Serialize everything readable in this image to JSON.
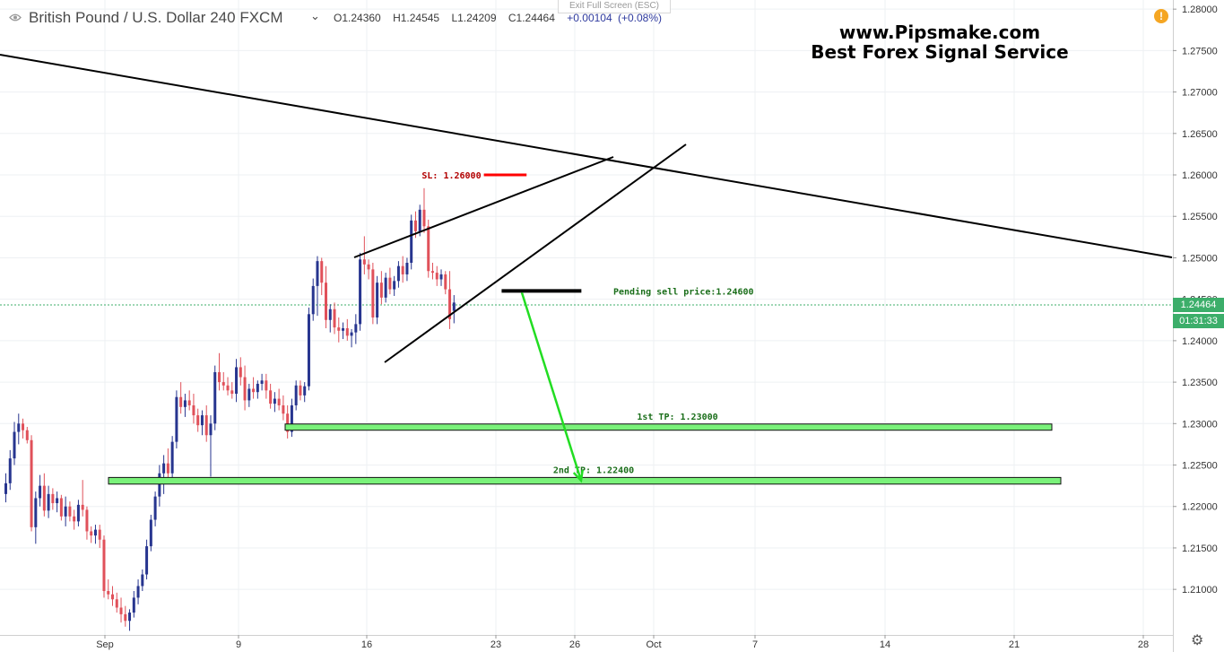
{
  "header": {
    "symbol": "British Pound / U.S. Dollar",
    "interval": "240",
    "exchange": "FXCM",
    "open": "O1.24360",
    "high": "H1.24545",
    "low": "L1.24209",
    "close": "C1.24464",
    "change": "+0.00104",
    "change_pct": "(+0.08%)"
  },
  "exit_fullscreen": "Exit Full Screen (ESC)",
  "brand": {
    "line1": "www.Pipsmake.com",
    "line2": "Best Forex Signal Service"
  },
  "alert_icon": "!",
  "settings_icon": "gear-icon",
  "price_tags": {
    "last": "1.24464",
    "countdown": "01:31:33",
    "color": "#3cae6a"
  },
  "colors": {
    "bull": "#27358f",
    "bear": "#e0515a",
    "tp_fill": "#7af27a",
    "sl": "#ff0000",
    "arrow": "#22dd22",
    "pending": "#000000",
    "label_green": "#1a6e1a",
    "label_red": "#b20000"
  },
  "chart_data": {
    "type": "candlestick",
    "x_ticks": [
      "Sep",
      "9",
      "16",
      "23",
      "26",
      "Oct",
      "7",
      "14",
      "21",
      "28"
    ],
    "y_ticks": [
      "1.28000",
      "1.27500",
      "1.27000",
      "1.26500",
      "1.26000",
      "1.25500",
      "1.25000",
      "1.24500",
      "1.24000",
      "1.23500",
      "1.23000",
      "1.22500",
      "1.22000",
      "1.21500",
      "1.21000"
    ],
    "ylim": [
      1.2045,
      1.2811
    ],
    "last_price": 1.24464,
    "candles": [
      {
        "o": 1.2215,
        "h": 1.224,
        "l": 1.2205,
        "c": 1.2228
      },
      {
        "o": 1.2228,
        "h": 1.2268,
        "l": 1.222,
        "c": 1.2258
      },
      {
        "o": 1.2258,
        "h": 1.2302,
        "l": 1.225,
        "c": 1.229
      },
      {
        "o": 1.229,
        "h": 1.2312,
        "l": 1.2275,
        "c": 1.23
      },
      {
        "o": 1.23,
        "h": 1.2306,
        "l": 1.2282,
        "c": 1.2292
      },
      {
        "o": 1.2292,
        "h": 1.2296,
        "l": 1.2276,
        "c": 1.228
      },
      {
        "o": 1.228,
        "h": 1.2286,
        "l": 1.217,
        "c": 1.2175
      },
      {
        "o": 1.2175,
        "h": 1.2218,
        "l": 1.2155,
        "c": 1.221
      },
      {
        "o": 1.221,
        "h": 1.2238,
        "l": 1.22,
        "c": 1.2225
      },
      {
        "o": 1.2225,
        "h": 1.224,
        "l": 1.2188,
        "c": 1.2195
      },
      {
        "o": 1.2195,
        "h": 1.2225,
        "l": 1.2186,
        "c": 1.2215
      },
      {
        "o": 1.2215,
        "h": 1.2222,
        "l": 1.2196,
        "c": 1.2204
      },
      {
        "o": 1.2204,
        "h": 1.2218,
        "l": 1.2193,
        "c": 1.221
      },
      {
        "o": 1.221,
        "h": 1.2214,
        "l": 1.2183,
        "c": 1.2188
      },
      {
        "o": 1.2188,
        "h": 1.2212,
        "l": 1.2176,
        "c": 1.22
      },
      {
        "o": 1.22,
        "h": 1.2206,
        "l": 1.2182,
        "c": 1.2188
      },
      {
        "o": 1.2188,
        "h": 1.2196,
        "l": 1.2172,
        "c": 1.2182
      },
      {
        "o": 1.2182,
        "h": 1.2208,
        "l": 1.2176,
        "c": 1.2202
      },
      {
        "o": 1.2202,
        "h": 1.2232,
        "l": 1.2188,
        "c": 1.2196
      },
      {
        "o": 1.2196,
        "h": 1.22,
        "l": 1.216,
        "c": 1.217
      },
      {
        "o": 1.217,
        "h": 1.2176,
        "l": 1.2156,
        "c": 1.2165
      },
      {
        "o": 1.2165,
        "h": 1.2178,
        "l": 1.2155,
        "c": 1.2172
      },
      {
        "o": 1.2172,
        "h": 1.2178,
        "l": 1.215,
        "c": 1.216
      },
      {
        "o": 1.216,
        "h": 1.2165,
        "l": 1.209,
        "c": 1.2098
      },
      {
        "o": 1.2098,
        "h": 1.2112,
        "l": 1.2088,
        "c": 1.2094
      },
      {
        "o": 1.2094,
        "h": 1.2104,
        "l": 1.208,
        "c": 1.2088
      },
      {
        "o": 1.2088,
        "h": 1.2096,
        "l": 1.2072,
        "c": 1.2078
      },
      {
        "o": 1.2078,
        "h": 1.209,
        "l": 1.206,
        "c": 1.207
      },
      {
        "o": 1.207,
        "h": 1.208,
        "l": 1.2055,
        "c": 1.2062
      },
      {
        "o": 1.2062,
        "h": 1.2076,
        "l": 1.205,
        "c": 1.2072
      },
      {
        "o": 1.2072,
        "h": 1.2098,
        "l": 1.2066,
        "c": 1.209
      },
      {
        "o": 1.209,
        "h": 1.2112,
        "l": 1.2082,
        "c": 1.2104
      },
      {
        "o": 1.2104,
        "h": 1.2124,
        "l": 1.2098,
        "c": 1.2118
      },
      {
        "o": 1.2118,
        "h": 1.216,
        "l": 1.2112,
        "c": 1.2152
      },
      {
        "o": 1.2152,
        "h": 1.219,
        "l": 1.2146,
        "c": 1.2184
      },
      {
        "o": 1.2184,
        "h": 1.2218,
        "l": 1.2176,
        "c": 1.2212
      },
      {
        "o": 1.2212,
        "h": 1.225,
        "l": 1.22,
        "c": 1.224
      },
      {
        "o": 1.224,
        "h": 1.2262,
        "l": 1.2215,
        "c": 1.2252
      },
      {
        "o": 1.2252,
        "h": 1.227,
        "l": 1.2232,
        "c": 1.224
      },
      {
        "o": 1.224,
        "h": 1.2285,
        "l": 1.2232,
        "c": 1.2278
      },
      {
        "o": 1.2278,
        "h": 1.234,
        "l": 1.227,
        "c": 1.2332
      },
      {
        "o": 1.2332,
        "h": 1.235,
        "l": 1.2312,
        "c": 1.232
      },
      {
        "o": 1.232,
        "h": 1.2336,
        "l": 1.2308,
        "c": 1.2328
      },
      {
        "o": 1.2328,
        "h": 1.234,
        "l": 1.2316,
        "c": 1.2322
      },
      {
        "o": 1.2322,
        "h": 1.2336,
        "l": 1.23,
        "c": 1.231
      },
      {
        "o": 1.231,
        "h": 1.2318,
        "l": 1.229,
        "c": 1.2298
      },
      {
        "o": 1.2298,
        "h": 1.2316,
        "l": 1.2286,
        "c": 1.231
      },
      {
        "o": 1.231,
        "h": 1.2322,
        "l": 1.2278,
        "c": 1.2286
      },
      {
        "o": 1.2286,
        "h": 1.231,
        "l": 1.2236,
        "c": 1.23
      },
      {
        "o": 1.23,
        "h": 1.237,
        "l": 1.2292,
        "c": 1.2362
      },
      {
        "o": 1.2362,
        "h": 1.2385,
        "l": 1.234,
        "c": 1.235
      },
      {
        "o": 1.235,
        "h": 1.2362,
        "l": 1.234,
        "c": 1.2346
      },
      {
        "o": 1.2346,
        "h": 1.2356,
        "l": 1.2334,
        "c": 1.234
      },
      {
        "o": 1.234,
        "h": 1.235,
        "l": 1.233,
        "c": 1.2336
      },
      {
        "o": 1.2336,
        "h": 1.2378,
        "l": 1.2326,
        "c": 1.2368
      },
      {
        "o": 1.2368,
        "h": 1.238,
        "l": 1.2346,
        "c": 1.2356
      },
      {
        "o": 1.2356,
        "h": 1.237,
        "l": 1.2316,
        "c": 1.2328
      },
      {
        "o": 1.2328,
        "h": 1.2348,
        "l": 1.232,
        "c": 1.2342
      },
      {
        "o": 1.2342,
        "h": 1.2356,
        "l": 1.233,
        "c": 1.2338
      },
      {
        "o": 1.2338,
        "h": 1.2352,
        "l": 1.233,
        "c": 1.2348
      },
      {
        "o": 1.2348,
        "h": 1.236,
        "l": 1.234,
        "c": 1.2352
      },
      {
        "o": 1.2352,
        "h": 1.236,
        "l": 1.233,
        "c": 1.234
      },
      {
        "o": 1.234,
        "h": 1.2348,
        "l": 1.2318,
        "c": 1.2324
      },
      {
        "o": 1.2324,
        "h": 1.2338,
        "l": 1.2314,
        "c": 1.233
      },
      {
        "o": 1.233,
        "h": 1.2342,
        "l": 1.2316,
        "c": 1.2322
      },
      {
        "o": 1.2322,
        "h": 1.2334,
        "l": 1.2304,
        "c": 1.2312
      },
      {
        "o": 1.2312,
        "h": 1.2322,
        "l": 1.2282,
        "c": 1.229
      },
      {
        "o": 1.229,
        "h": 1.233,
        "l": 1.2284,
        "c": 1.2322
      },
      {
        "o": 1.2322,
        "h": 1.2352,
        "l": 1.2316,
        "c": 1.2346
      },
      {
        "o": 1.2346,
        "h": 1.2352,
        "l": 1.2328,
        "c": 1.2334
      },
      {
        "o": 1.2334,
        "h": 1.235,
        "l": 1.2326,
        "c": 1.2345
      },
      {
        "o": 1.2345,
        "h": 1.244,
        "l": 1.234,
        "c": 1.2432
      },
      {
        "o": 1.2432,
        "h": 1.2475,
        "l": 1.2424,
        "c": 1.2466
      },
      {
        "o": 1.2466,
        "h": 1.2502,
        "l": 1.243,
        "c": 1.2496
      },
      {
        "o": 1.2496,
        "h": 1.25,
        "l": 1.2455,
        "c": 1.247
      },
      {
        "o": 1.247,
        "h": 1.249,
        "l": 1.2415,
        "c": 1.2425
      },
      {
        "o": 1.2425,
        "h": 1.2444,
        "l": 1.241,
        "c": 1.2438
      },
      {
        "o": 1.2438,
        "h": 1.2446,
        "l": 1.2408,
        "c": 1.2416
      },
      {
        "o": 1.2416,
        "h": 1.2428,
        "l": 1.2398,
        "c": 1.2412
      },
      {
        "o": 1.2412,
        "h": 1.2422,
        "l": 1.2402,
        "c": 1.2415
      },
      {
        "o": 1.2415,
        "h": 1.2426,
        "l": 1.24,
        "c": 1.2406
      },
      {
        "o": 1.2406,
        "h": 1.2414,
        "l": 1.2392,
        "c": 1.241
      },
      {
        "o": 1.241,
        "h": 1.2432,
        "l": 1.2396,
        "c": 1.242
      },
      {
        "o": 1.242,
        "h": 1.2506,
        "l": 1.2412,
        "c": 1.2498
      },
      {
        "o": 1.2498,
        "h": 1.2526,
        "l": 1.248,
        "c": 1.2492
      },
      {
        "o": 1.2492,
        "h": 1.2498,
        "l": 1.2474,
        "c": 1.2486
      },
      {
        "o": 1.2486,
        "h": 1.2494,
        "l": 1.242,
        "c": 1.2428
      },
      {
        "o": 1.2428,
        "h": 1.2478,
        "l": 1.242,
        "c": 1.247
      },
      {
        "o": 1.247,
        "h": 1.2484,
        "l": 1.2444,
        "c": 1.2452
      },
      {
        "o": 1.2452,
        "h": 1.2482,
        "l": 1.2446,
        "c": 1.2476
      },
      {
        "o": 1.2476,
        "h": 1.2488,
        "l": 1.2456,
        "c": 1.2462
      },
      {
        "o": 1.2462,
        "h": 1.2478,
        "l": 1.2454,
        "c": 1.2472
      },
      {
        "o": 1.2472,
        "h": 1.2496,
        "l": 1.2464,
        "c": 1.249
      },
      {
        "o": 1.249,
        "h": 1.2502,
        "l": 1.247,
        "c": 1.248
      },
      {
        "o": 1.248,
        "h": 1.25,
        "l": 1.2472,
        "c": 1.2494
      },
      {
        "o": 1.2494,
        "h": 1.2552,
        "l": 1.2486,
        "c": 1.2545
      },
      {
        "o": 1.2545,
        "h": 1.2556,
        "l": 1.2524,
        "c": 1.2532
      },
      {
        "o": 1.2532,
        "h": 1.2564,
        "l": 1.2526,
        "c": 1.2558
      },
      {
        "o": 1.2558,
        "h": 1.2584,
        "l": 1.253,
        "c": 1.2538
      },
      {
        "o": 1.2538,
        "h": 1.2546,
        "l": 1.2476,
        "c": 1.2484
      },
      {
        "o": 1.2484,
        "h": 1.2494,
        "l": 1.2474,
        "c": 1.2482
      },
      {
        "o": 1.2482,
        "h": 1.249,
        "l": 1.2466,
        "c": 1.2474
      },
      {
        "o": 1.2474,
        "h": 1.2486,
        "l": 1.2466,
        "c": 1.248
      },
      {
        "o": 1.248,
        "h": 1.2484,
        "l": 1.2456,
        "c": 1.2462
      },
      {
        "o": 1.2462,
        "h": 1.2484,
        "l": 1.2414,
        "c": 1.2426
      },
      {
        "o": 1.2436,
        "h": 1.2455,
        "l": 1.2421,
        "c": 1.2446
      }
    ],
    "annotations": {
      "sl": {
        "price": 1.26,
        "label": "SL: 1.26000",
        "bar_from": 112,
        "bar_to": 122
      },
      "pending": {
        "price": 1.246,
        "label": "Pending sell price:1.24600",
        "bar_from": 117,
        "bar_to": 134
      },
      "tp1": {
        "price": 1.23,
        "label": "1st TP: 1.23000",
        "price_top": 1.22995,
        "price_bottom": 1.2292,
        "x_from": 318,
        "x_to": 1173
      },
      "tp2": {
        "price": 1.224,
        "label": "2nd TP: 1.22400",
        "price_top": 1.2235,
        "price_bottom": 1.2227,
        "x_from": 121,
        "x_to": 1183
      }
    }
  }
}
